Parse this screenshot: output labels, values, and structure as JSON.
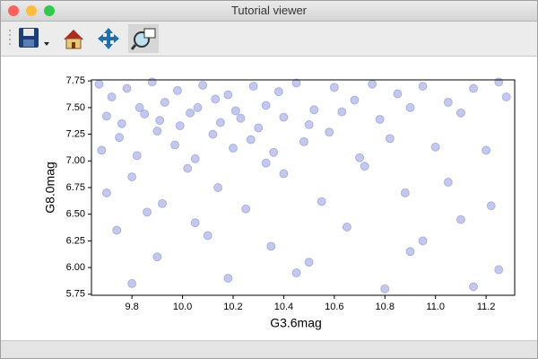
{
  "window": {
    "title": "Tutorial viewer"
  },
  "chart_data": {
    "type": "scatter",
    "xlabel": "G3.6mag",
    "ylabel": "G8.0mag",
    "color": "#7c86d6",
    "xlim": [
      9.64,
      11.313
    ],
    "ylim": [
      5.74,
      7.76
    ],
    "xticks": [
      9.8,
      {
        "value": 10.0,
        "label": "10.0"
      },
      10.2,
      10.4,
      10.6,
      10.8,
      {
        "value": 11.0,
        "label": "11.0"
      },
      11.2
    ],
    "yticks": [
      5.75,
      {
        "value": 6.0,
        "label": "6.00"
      },
      6.25,
      {
        "value": 6.5,
        "label": "6.50"
      },
      6.75,
      {
        "value": 7.0,
        "label": "7.00"
      },
      7.25,
      {
        "value": 7.5,
        "label": "7.50"
      },
      7.75
    ],
    "x": [
      9.67,
      9.72,
      9.78,
      9.83,
      9.88,
      9.93,
      9.98,
      10.03,
      10.08,
      10.13,
      10.18,
      10.23,
      10.28,
      10.33,
      10.38,
      10.45,
      10.52,
      10.6,
      10.68,
      10.75,
      10.85,
      10.95,
      11.05,
      11.15,
      11.25,
      9.7,
      9.76,
      9.85,
      9.91,
      9.99,
      10.06,
      10.15,
      10.21,
      10.3,
      10.4,
      10.5,
      10.63,
      10.78,
      10.9,
      11.1,
      11.28,
      9.68,
      9.75,
      9.82,
      9.9,
      9.97,
      10.05,
      10.12,
      10.2,
      10.27,
      10.36,
      10.48,
      10.58,
      10.7,
      10.82,
      11.0,
      11.2,
      9.7,
      9.8,
      9.92,
      10.02,
      10.14,
      10.25,
      10.4,
      10.55,
      10.72,
      10.88,
      11.05,
      11.22,
      9.86,
      10.33,
      9.74,
      9.9,
      10.05,
      10.18,
      10.35,
      10.5,
      10.65,
      10.8,
      10.95,
      11.1,
      11.25,
      9.8,
      10.1,
      10.45,
      10.9,
      11.15
    ],
    "y": [
      7.72,
      7.6,
      7.68,
      7.5,
      7.74,
      7.55,
      7.66,
      7.45,
      7.71,
      7.58,
      7.62,
      7.4,
      7.7,
      7.52,
      7.65,
      7.73,
      7.48,
      7.69,
      7.57,
      7.72,
      7.63,
      7.7,
      7.55,
      7.68,
      7.74,
      7.42,
      7.35,
      7.44,
      7.38,
      7.33,
      7.5,
      7.36,
      7.47,
      7.31,
      7.41,
      7.34,
      7.46,
      7.39,
      7.5,
      7.45,
      7.6,
      7.1,
      7.22,
      7.05,
      7.28,
      7.15,
      7.02,
      7.25,
      7.12,
      7.2,
      7.08,
      7.18,
      7.27,
      7.03,
      7.21,
      7.13,
      7.1,
      6.7,
      6.85,
      6.6,
      6.93,
      6.75,
      6.55,
      6.88,
      6.62,
      6.95,
      6.7,
      6.8,
      6.58,
      6.52,
      6.98,
      6.35,
      6.1,
      6.42,
      5.9,
      6.2,
      6.05,
      6.38,
      5.8,
      6.25,
      6.45,
      5.98,
      5.85,
      6.3,
      5.95,
      6.15,
      5.82
    ]
  }
}
